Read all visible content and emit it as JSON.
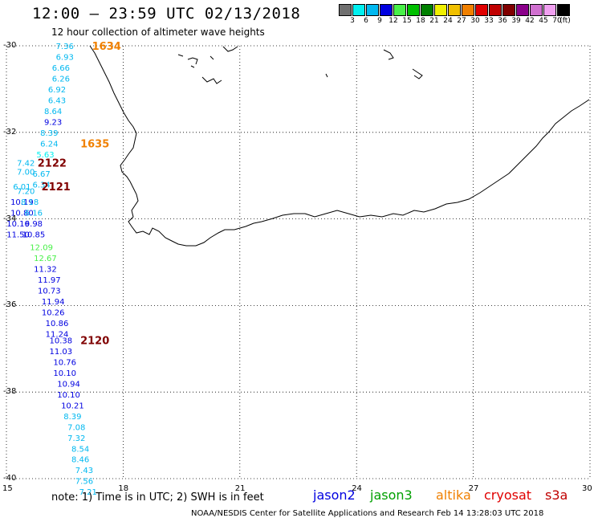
{
  "title": "12:00 – 23:59 UTC 02/13/2018",
  "subtitle": "12 hour collection of altimeter wave heights",
  "legend": {
    "colors": [
      "#707070",
      "#00f0f0",
      "#00b8f0",
      "#0000e0",
      "#48f048",
      "#00c000",
      "#008000",
      "#f0f000",
      "#f0c000",
      "#f08000",
      "#e00000",
      "#c00000",
      "#800000",
      "#8b008b",
      "#d070d0",
      "#f0a0f0",
      "#000000"
    ],
    "labels": [
      "3",
      "6",
      "9",
      "12",
      "15",
      "18",
      "21",
      "24",
      "27",
      "30",
      "33",
      "36",
      "39",
      "42",
      "45",
      "70",
      "(ft)"
    ]
  },
  "axes": {
    "x_ticks": [
      "15",
      "18",
      "21",
      "24",
      "27",
      "30"
    ],
    "y_ticks": [
      "-30",
      "-32",
      "-34",
      "-36",
      "-38",
      "-40"
    ]
  },
  "tracks": [
    {
      "lon": 16.5,
      "lat": -30.0,
      "v": "7.36",
      "c": "#00b8f0"
    },
    {
      "lon": 16.5,
      "lat": -30.25,
      "v": "6.93",
      "c": "#00b8f0"
    },
    {
      "lon": 16.4,
      "lat": -30.5,
      "v": "6.66",
      "c": "#00b8f0"
    },
    {
      "lon": 16.4,
      "lat": -30.75,
      "v": "6.26",
      "c": "#00b8f0"
    },
    {
      "lon": 16.3,
      "lat": -31.0,
      "v": "6.92",
      "c": "#00b8f0"
    },
    {
      "lon": 16.3,
      "lat": -31.25,
      "v": "6.43",
      "c": "#00b8f0"
    },
    {
      "lon": 16.2,
      "lat": -31.5,
      "v": "8.64",
      "c": "#00b8f0"
    },
    {
      "lon": 16.2,
      "lat": -31.75,
      "v": "9.23",
      "c": "#0000e0"
    },
    {
      "lon": 16.1,
      "lat": -32.0,
      "v": "8.39",
      "c": "#00b8f0"
    },
    {
      "lon": 16.1,
      "lat": -32.25,
      "v": "6.24",
      "c": "#00b8f0"
    },
    {
      "lon": 16.0,
      "lat": -32.5,
      "v": "5.63",
      "c": "#00f0f0"
    },
    {
      "lon": 15.5,
      "lat": -32.7,
      "v": "7.42",
      "c": "#00b8f0"
    },
    {
      "lon": 15.5,
      "lat": -32.9,
      "v": "7.00",
      "c": "#00b8f0"
    },
    {
      "lon": 15.9,
      "lat": -32.95,
      "v": "6.67",
      "c": "#00b8f0"
    },
    {
      "lon": 15.9,
      "lat": -33.2,
      "v": "6.34",
      "c": "#00b8f0"
    },
    {
      "lon": 15.4,
      "lat": -33.25,
      "v": "6.01",
      "c": "#00b8f0"
    },
    {
      "lon": 15.5,
      "lat": -33.35,
      "v": "7.20",
      "c": "#00b8f0"
    },
    {
      "lon": 15.4,
      "lat": -33.6,
      "v": "10.19",
      "c": "#0000e0"
    },
    {
      "lon": 15.6,
      "lat": -33.6,
      "v": "8.18",
      "c": "#00b8f0"
    },
    {
      "lon": 15.4,
      "lat": -33.85,
      "v": "10.80",
      "c": "#0000e0"
    },
    {
      "lon": 15.7,
      "lat": -33.85,
      "v": "6.16",
      "c": "#00b8f0"
    },
    {
      "lon": 15.3,
      "lat": -34.1,
      "v": "10.16",
      "c": "#0000e0"
    },
    {
      "lon": 15.7,
      "lat": -34.1,
      "v": "9.98",
      "c": "#0000e0"
    },
    {
      "lon": 15.3,
      "lat": -34.35,
      "v": "11.50",
      "c": "#0000e0"
    },
    {
      "lon": 15.7,
      "lat": -34.35,
      "v": "10.85",
      "c": "#0000e0"
    },
    {
      "lon": 15.9,
      "lat": -34.65,
      "v": "12.09",
      "c": "#48f048"
    },
    {
      "lon": 16.0,
      "lat": -34.9,
      "v": "12.67",
      "c": "#48f048"
    },
    {
      "lon": 16.0,
      "lat": -35.15,
      "v": "11.32",
      "c": "#0000e0"
    },
    {
      "lon": 16.1,
      "lat": -35.4,
      "v": "11.97",
      "c": "#0000e0"
    },
    {
      "lon": 16.1,
      "lat": -35.65,
      "v": "10.73",
      "c": "#0000e0"
    },
    {
      "lon": 16.2,
      "lat": -35.9,
      "v": "11.94",
      "c": "#0000e0"
    },
    {
      "lon": 16.2,
      "lat": -36.15,
      "v": "10.26",
      "c": "#0000e0"
    },
    {
      "lon": 16.3,
      "lat": -36.4,
      "v": "10.86",
      "c": "#0000e0"
    },
    {
      "lon": 16.3,
      "lat": -36.65,
      "v": "11.24",
      "c": "#0000e0"
    },
    {
      "lon": 16.4,
      "lat": -36.8,
      "v": "10.38",
      "c": "#0000e0"
    },
    {
      "lon": 16.4,
      "lat": -37.05,
      "v": "11.03",
      "c": "#0000e0"
    },
    {
      "lon": 16.5,
      "lat": -37.3,
      "v": "10.76",
      "c": "#0000e0"
    },
    {
      "lon": 16.5,
      "lat": -37.55,
      "v": "10.10",
      "c": "#0000e0"
    },
    {
      "lon": 16.6,
      "lat": -37.8,
      "v": "10.94",
      "c": "#0000e0"
    },
    {
      "lon": 16.6,
      "lat": -38.05,
      "v": "10.10",
      "c": "#0000e0"
    },
    {
      "lon": 16.7,
      "lat": -38.3,
      "v": "10.21",
      "c": "#0000e0"
    },
    {
      "lon": 16.7,
      "lat": -38.55,
      "v": "8.39",
      "c": "#00b8f0"
    },
    {
      "lon": 16.8,
      "lat": -38.8,
      "v": "7.08",
      "c": "#00b8f0"
    },
    {
      "lon": 16.8,
      "lat": -39.05,
      "v": "7.32",
      "c": "#00b8f0"
    },
    {
      "lon": 16.9,
      "lat": -39.3,
      "v": "8.54",
      "c": "#00b8f0"
    },
    {
      "lon": 16.9,
      "lat": -39.55,
      "v": "8.46",
      "c": "#00b8f0"
    },
    {
      "lon": 17.0,
      "lat": -39.8,
      "v": "7.43",
      "c": "#00b8f0"
    },
    {
      "lon": 17.0,
      "lat": -40.05,
      "v": "7.56",
      "c": "#00b8f0"
    },
    {
      "lon": 17.1,
      "lat": -40.3,
      "v": "7.21",
      "c": "#00b8f0"
    }
  ],
  "times": [
    {
      "lon": 17.2,
      "lat": -30.0,
      "t": "1634",
      "c": "#f08000"
    },
    {
      "lon": 16.9,
      "lat": -32.25,
      "t": "1635",
      "c": "#f08000"
    },
    {
      "lon": 15.8,
      "lat": -32.7,
      "t": "2122",
      "c": "#800000"
    },
    {
      "lon": 15.9,
      "lat": -33.25,
      "t": "2121",
      "c": "#800000"
    },
    {
      "lon": 16.9,
      "lat": -36.8,
      "t": "2120",
      "c": "#800000"
    }
  ],
  "note": "note:  1)  Time is in UTC;  2)  SWH is in feet",
  "satellites": [
    {
      "name": "jason2",
      "color": "#0000e0"
    },
    {
      "name": "jason3",
      "color": "#00a000"
    },
    {
      "name": "altika",
      "color": "#f08000"
    },
    {
      "name": "cryosat",
      "color": "#e00000"
    },
    {
      "name": "s3a",
      "color": "#c00000"
    }
  ],
  "credit": "NOAA/NESDIS Center for Satellite Applications and Research     Feb 14 13:28:03 UTC 2018"
}
